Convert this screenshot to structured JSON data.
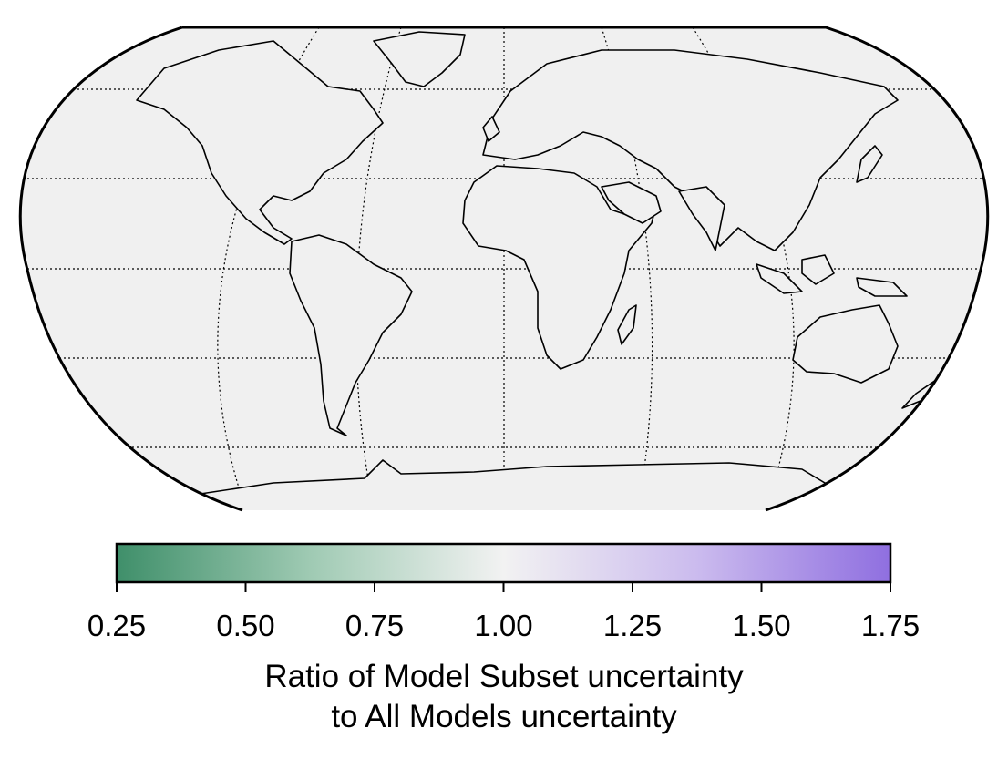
{
  "colors": {
    "map_fill": "#f0f0f0",
    "coastline": "#000000",
    "gridline": "#000000",
    "colormap_low": "#3f8f6a",
    "colormap_mid": "#f2f2f2",
    "colormap_high": "#8f6fe0"
  },
  "colorbar": {
    "min": 0.25,
    "max": 1.75,
    "ticks": [
      "0.25",
      "0.50",
      "0.75",
      "1.00",
      "1.25",
      "1.50",
      "1.75"
    ],
    "label_line1": "Ratio of Model Subset uncertainty",
    "label_line2": "to All Models uncertainty"
  },
  "map": {
    "projection": "Robinson",
    "gridlines": "dotted",
    "values_note": ""
  }
}
